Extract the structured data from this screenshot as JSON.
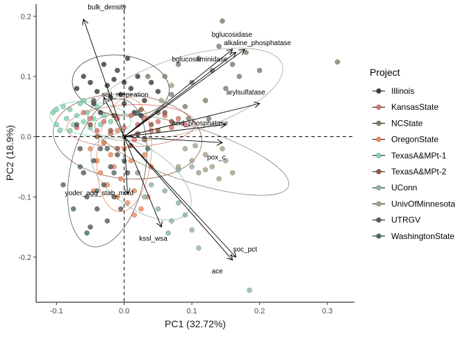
{
  "chart_data": {
    "type": "scatter",
    "title": "",
    "xlabel": "PC1 (32.72%)",
    "ylabel": "PC2 (18.9%)",
    "xlim": [
      -0.13,
      0.34
    ],
    "ylim": [
      -0.275,
      0.22
    ],
    "xticks": [
      -0.1,
      0.0,
      0.1,
      0.2,
      0.3
    ],
    "xtick_labels": [
      "-0.1",
      "0.0",
      "0.1",
      "0.2",
      "0.3"
    ],
    "yticks": [
      -0.2,
      -0.1,
      0.0,
      0.1,
      0.2
    ],
    "ytick_labels": [
      "-0.2",
      "-0.1",
      "0.0",
      "0.1",
      "0.2"
    ],
    "grid": false,
    "reference_lines": {
      "x": 0,
      "y": 0,
      "style": "dashed"
    },
    "legend": {
      "title": "Project",
      "placement": "right",
      "entries": [
        {
          "name": "Illinois",
          "color": "#3d3d3d"
        },
        {
          "name": "KansasState",
          "color": "#d9736b"
        },
        {
          "name": "NCState",
          "color": "#80806a"
        },
        {
          "name": "OregonState",
          "color": "#f08a5a"
        },
        {
          "name": "TexasA&MPt-1",
          "color": "#7ed3b2"
        },
        {
          "name": "TexasA&MPt-2",
          "color": "#8b5a40"
        },
        {
          "name": "UConn",
          "color": "#8fb3ad"
        },
        {
          "name": "UnivOfMinnesota",
          "color": "#a3a38a"
        },
        {
          "name": "UTRGV",
          "color": "#5a5a5a"
        },
        {
          "name": "WashingtonState",
          "color": "#4a6e66"
        }
      ]
    },
    "loadings": [
      {
        "name": "bulk_density",
        "x": -0.06,
        "y": 0.195
      },
      {
        "name": "bglucosidase",
        "x": 0.16,
        "y": 0.145
      },
      {
        "name": "alkaline_phosphatase",
        "x": 0.178,
        "y": 0.145
      },
      {
        "name": "bglucosaminidase",
        "x": 0.165,
        "y": 0.14
      },
      {
        "name": "arylsulfatase",
        "x": 0.2,
        "y": 0.055
      },
      {
        "name": "soil_respiration",
        "x": -0.03,
        "y": 0.065
      },
      {
        "name": "acid_phosphatase",
        "x": 0.15,
        "y": 0.02
      },
      {
        "name": "pox_c",
        "x": 0.145,
        "y": -0.01
      },
      {
        "name": "yoder_agg_stab_mwd",
        "x": 0.005,
        "y": -0.095
      },
      {
        "name": "kssl_wsa",
        "x": 0.055,
        "y": -0.15
      },
      {
        "name": "soc_pct",
        "x": 0.165,
        "y": -0.2
      },
      {
        "name": "ace",
        "x": 0.16,
        "y": -0.205
      }
    ],
    "ellipses": [
      {
        "group": "UnivOfMinnesota",
        "cx": 0.09,
        "cy": 0.07,
        "rx": 0.15,
        "ry": 0.062,
        "angle": 17
      },
      {
        "group": "Illinois",
        "cx": -0.005,
        "cy": 0.085,
        "rx": 0.072,
        "ry": 0.05,
        "angle": -8
      },
      {
        "group": "KansasState",
        "cx": 0.01,
        "cy": 0.018,
        "rx": 0.095,
        "ry": 0.035,
        "angle": 2
      },
      {
        "group": "TexasA&MPt-2",
        "cx": 0.005,
        "cy": 0.0,
        "rx": 0.11,
        "ry": 0.07,
        "angle": -5
      },
      {
        "group": "NCState",
        "cx": 0.1,
        "cy": -0.03,
        "rx": 0.15,
        "ry": 0.045,
        "angle": -18
      },
      {
        "group": "TexasA&MPt-1",
        "cx": -0.05,
        "cy": 0.03,
        "rx": 0.06,
        "ry": 0.028,
        "angle": -5
      },
      {
        "group": "OregonState",
        "cx": 0.0,
        "cy": -0.03,
        "rx": 0.04,
        "ry": 0.095,
        "angle": -5
      },
      {
        "group": "UTRGV",
        "cx": -0.025,
        "cy": -0.06,
        "rx": 0.055,
        "ry": 0.125,
        "angle": -12
      },
      {
        "group": "UConn",
        "cx": 0.025,
        "cy": -0.07,
        "rx": 0.085,
        "ry": 0.05,
        "angle": -35
      }
    ],
    "points": [
      {
        "group": "TexasA&MPt-1",
        "x": -0.105,
        "y": 0.04
      },
      {
        "group": "TexasA&MPt-1",
        "x": -0.1,
        "y": 0.02
      },
      {
        "group": "TexasA&MPt-1",
        "x": -0.095,
        "y": 0.01
      },
      {
        "group": "TexasA&MPt-1",
        "x": -0.09,
        "y": 0.05
      },
      {
        "group": "TexasA&MPt-1",
        "x": -0.085,
        "y": 0.03
      },
      {
        "group": "TexasA&MPt-1",
        "x": -0.08,
        "y": 0.045
      },
      {
        "group": "TexasA&MPt-1",
        "x": -0.075,
        "y": 0.02
      },
      {
        "group": "TexasA&MPt-1",
        "x": -0.07,
        "y": 0.035
      },
      {
        "group": "TexasA&MPt-1",
        "x": -0.065,
        "y": 0.055
      },
      {
        "group": "TexasA&MPt-1",
        "x": -0.06,
        "y": 0.025
      },
      {
        "group": "TexasA&MPt-1",
        "x": -0.055,
        "y": 0.04
      },
      {
        "group": "TexasA&MPt-1",
        "x": -0.05,
        "y": 0.015
      },
      {
        "group": "TexasA&MPt-1",
        "x": -0.045,
        "y": 0.03
      },
      {
        "group": "TexasA&MPt-1",
        "x": -0.04,
        "y": 0.05
      },
      {
        "group": "TexasA&MPt-1",
        "x": -0.035,
        "y": 0.02
      },
      {
        "group": "TexasA&MPt-1",
        "x": -0.03,
        "y": 0.035
      },
      {
        "group": "TexasA&MPt-1",
        "x": -0.1,
        "y": 0.045
      },
      {
        "group": "TexasA&MPt-1",
        "x": -0.08,
        "y": 0.01
      },
      {
        "group": "TexasA&MPt-1",
        "x": -0.06,
        "y": 0.06
      },
      {
        "group": "TexasA&MPt-1",
        "x": -0.02,
        "y": 0.025
      },
      {
        "group": "Illinois",
        "x": -0.07,
        "y": 0.08
      },
      {
        "group": "Illinois",
        "x": -0.06,
        "y": 0.1
      },
      {
        "group": "Illinois",
        "x": -0.05,
        "y": 0.09
      },
      {
        "group": "Illinois",
        "x": -0.04,
        "y": 0.075
      },
      {
        "group": "Illinois",
        "x": -0.03,
        "y": 0.12
      },
      {
        "group": "Illinois",
        "x": -0.025,
        "y": 0.085
      },
      {
        "group": "Illinois",
        "x": -0.02,
        "y": 0.065
      },
      {
        "group": "Illinois",
        "x": -0.015,
        "y": 0.095
      },
      {
        "group": "Illinois",
        "x": -0.01,
        "y": 0.11
      },
      {
        "group": "Illinois",
        "x": -0.005,
        "y": 0.07
      },
      {
        "group": "Illinois",
        "x": 0.0,
        "y": 0.09
      },
      {
        "group": "Illinois",
        "x": 0.005,
        "y": 0.13
      },
      {
        "group": "Illinois",
        "x": 0.01,
        "y": 0.08
      },
      {
        "group": "Illinois",
        "x": 0.02,
        "y": 0.1
      },
      {
        "group": "Illinois",
        "x": 0.03,
        "y": 0.06
      },
      {
        "group": "Illinois",
        "x": 0.04,
        "y": 0.09
      },
      {
        "group": "Illinois",
        "x": 0.05,
        "y": 0.075
      },
      {
        "group": "Illinois",
        "x": -0.045,
        "y": 0.055
      },
      {
        "group": "Illinois",
        "x": 0.0,
        "y": 0.055
      },
      {
        "group": "Illinois",
        "x": 0.015,
        "y": 0.04
      },
      {
        "group": "Illinois",
        "x": -0.035,
        "y": 0.04
      },
      {
        "group": "Illinois",
        "x": 0.025,
        "y": 0.035
      },
      {
        "group": "KansasState",
        "x": -0.07,
        "y": 0.015
      },
      {
        "group": "KansasState",
        "x": -0.05,
        "y": 0.03
      },
      {
        "group": "KansasState",
        "x": -0.04,
        "y": 0.01
      },
      {
        "group": "KansasState",
        "x": -0.03,
        "y": 0.025
      },
      {
        "group": "KansasState",
        "x": -0.02,
        "y": 0.005
      },
      {
        "group": "KansasState",
        "x": -0.01,
        "y": 0.03
      },
      {
        "group": "KansasState",
        "x": 0.0,
        "y": 0.015
      },
      {
        "group": "KansasState",
        "x": 0.01,
        "y": 0.035
      },
      {
        "group": "KansasState",
        "x": 0.02,
        "y": 0.02
      },
      {
        "group": "KansasState",
        "x": 0.03,
        "y": 0.03
      },
      {
        "group": "KansasState",
        "x": 0.04,
        "y": 0.01
      },
      {
        "group": "KansasState",
        "x": 0.05,
        "y": 0.025
      },
      {
        "group": "KansasState",
        "x": 0.06,
        "y": 0.035
      },
      {
        "group": "KansasState",
        "x": 0.07,
        "y": 0.015
      },
      {
        "group": "KansasState",
        "x": 0.08,
        "y": 0.03
      },
      {
        "group": "KansasState",
        "x": 0.09,
        "y": 0.02
      },
      {
        "group": "KansasState",
        "x": -0.06,
        "y": 0.04
      },
      {
        "group": "KansasState",
        "x": 0.015,
        "y": -0.005
      },
      {
        "group": "TexasA&MPt-2",
        "x": -0.04,
        "y": 0.0
      },
      {
        "group": "TexasA&MPt-2",
        "x": -0.03,
        "y": -0.01
      },
      {
        "group": "TexasA&MPt-2",
        "x": -0.02,
        "y": 0.01
      },
      {
        "group": "TexasA&MPt-2",
        "x": -0.01,
        "y": -0.02
      },
      {
        "group": "TexasA&MPt-2",
        "x": 0.0,
        "y": 0.0
      },
      {
        "group": "TexasA&MPt-2",
        "x": 0.01,
        "y": -0.015
      },
      {
        "group": "TexasA&MPt-2",
        "x": 0.02,
        "y": 0.005
      },
      {
        "group": "TexasA&MPt-2",
        "x": 0.03,
        "y": -0.005
      },
      {
        "group": "TexasA&MPt-2",
        "x": 0.04,
        "y": 0.02
      },
      {
        "group": "TexasA&MPt-2",
        "x": 0.05,
        "y": 0.01
      },
      {
        "group": "TexasA&MPt-2",
        "x": 0.06,
        "y": 0.04
      },
      {
        "group": "TexasA&MPt-2",
        "x": 0.07,
        "y": 0.025
      },
      {
        "group": "TexasA&MPt-2",
        "x": -0.05,
        "y": 0.02
      },
      {
        "group": "TexasA&MPt-2",
        "x": -0.015,
        "y": 0.035
      },
      {
        "group": "TexasA&MPt-2",
        "x": 0.025,
        "y": 0.045
      },
      {
        "group": "OregonState",
        "x": -0.05,
        "y": -0.02
      },
      {
        "group": "OregonState",
        "x": -0.04,
        "y": -0.04
      },
      {
        "group": "OregonState",
        "x": -0.035,
        "y": -0.06
      },
      {
        "group": "OregonState",
        "x": -0.03,
        "y": -0.01
      },
      {
        "group": "OregonState",
        "x": -0.025,
        "y": -0.08
      },
      {
        "group": "OregonState",
        "x": -0.02,
        "y": -0.03
      },
      {
        "group": "OregonState",
        "x": -0.015,
        "y": -0.05
      },
      {
        "group": "OregonState",
        "x": -0.01,
        "y": -0.1
      },
      {
        "group": "OregonState",
        "x": -0.005,
        "y": -0.07
      },
      {
        "group": "OregonState",
        "x": 0.0,
        "y": -0.02
      },
      {
        "group": "OregonState",
        "x": 0.005,
        "y": -0.11
      },
      {
        "group": "OregonState",
        "x": 0.01,
        "y": -0.04
      },
      {
        "group": "OregonState",
        "x": 0.015,
        "y": -0.09
      },
      {
        "group": "OregonState",
        "x": 0.02,
        "y": -0.06
      },
      {
        "group": "OregonState",
        "x": 0.025,
        "y": -0.12
      },
      {
        "group": "OregonState",
        "x": 0.03,
        "y": -0.03
      },
      {
        "group": "OregonState",
        "x": 0.035,
        "y": -0.1
      },
      {
        "group": "OregonState",
        "x": 0.04,
        "y": -0.05
      },
      {
        "group": "OregonState",
        "x": -0.045,
        "y": -0.09
      },
      {
        "group": "OregonState",
        "x": 0.015,
        "y": -0.13
      },
      {
        "group": "OregonState",
        "x": -0.01,
        "y": 0.01
      },
      {
        "group": "UTRGV",
        "x": -0.06,
        "y": -0.06
      },
      {
        "group": "UTRGV",
        "x": -0.055,
        "y": -0.1
      },
      {
        "group": "UTRGV",
        "x": -0.05,
        "y": -0.15
      },
      {
        "group": "UTRGV",
        "x": -0.045,
        "y": -0.04
      },
      {
        "group": "UTRGV",
        "x": -0.04,
        "y": -0.12
      },
      {
        "group": "UTRGV",
        "x": -0.035,
        "y": -0.02
      },
      {
        "group": "UTRGV",
        "x": -0.03,
        "y": -0.08
      },
      {
        "group": "UTRGV",
        "x": -0.025,
        "y": -0.14
      },
      {
        "group": "UTRGV",
        "x": -0.02,
        "y": -0.05
      },
      {
        "group": "UTRGV",
        "x": -0.015,
        "y": -0.1
      },
      {
        "group": "UTRGV",
        "x": -0.01,
        "y": -0.03
      },
      {
        "group": "UTRGV",
        "x": -0.005,
        "y": -0.12
      },
      {
        "group": "UTRGV",
        "x": 0.005,
        "y": -0.06
      },
      {
        "group": "UTRGV",
        "x": -0.065,
        "y": -0.02
      },
      {
        "group": "UTRGV",
        "x": -0.07,
        "y": 0.02
      },
      {
        "group": "UTRGV",
        "x": -0.045,
        "y": 0.06
      },
      {
        "group": "WashingtonState",
        "x": -0.09,
        "y": -0.08
      },
      {
        "group": "WashingtonState",
        "x": -0.075,
        "y": -0.12
      },
      {
        "group": "WashingtonState",
        "x": -0.065,
        "y": -0.05
      },
      {
        "group": "WashingtonState",
        "x": -0.055,
        "y": -0.16
      },
      {
        "group": "WashingtonState",
        "x": -0.04,
        "y": -0.09
      },
      {
        "group": "WashingtonState",
        "x": -0.025,
        "y": -0.02
      },
      {
        "group": "WashingtonState",
        "x": -0.015,
        "y": -0.06
      },
      {
        "group": "WashingtonState",
        "x": 0.0,
        "y": -0.04
      },
      {
        "group": "WashingtonState",
        "x": 0.02,
        "y": 0.04
      },
      {
        "group": "WashingtonState",
        "x": 0.035,
        "y": -0.02
      },
      {
        "group": "UConn",
        "x": 0.02,
        "y": -0.06
      },
      {
        "group": "UConn",
        "x": 0.03,
        "y": -0.1
      },
      {
        "group": "UConn",
        "x": 0.04,
        "y": -0.08
      },
      {
        "group": "UConn",
        "x": 0.05,
        "y": -0.12
      },
      {
        "group": "UConn",
        "x": 0.06,
        "y": -0.09
      },
      {
        "group": "UConn",
        "x": 0.07,
        "y": -0.14
      },
      {
        "group": "UConn",
        "x": 0.08,
        "y": -0.11
      },
      {
        "group": "UConn",
        "x": 0.09,
        "y": -0.13
      },
      {
        "group": "UConn",
        "x": 0.1,
        "y": -0.155
      },
      {
        "group": "UConn",
        "x": 0.065,
        "y": -0.16
      },
      {
        "group": "UConn",
        "x": 0.08,
        "y": -0.055
      },
      {
        "group": "UConn",
        "x": 0.1,
        "y": -0.05
      },
      {
        "group": "UConn",
        "x": 0.11,
        "y": -0.185
      },
      {
        "group": "UConn",
        "x": 0.185,
        "y": -0.255
      },
      {
        "group": "NCState",
        "x": 0.05,
        "y": 0.04
      },
      {
        "group": "NCState",
        "x": 0.06,
        "y": 0.1
      },
      {
        "group": "NCState",
        "x": 0.07,
        "y": 0.07
      },
      {
        "group": "NCState",
        "x": 0.08,
        "y": 0.12
      },
      {
        "group": "NCState",
        "x": 0.09,
        "y": 0.05
      },
      {
        "group": "NCState",
        "x": 0.1,
        "y": 0.09
      },
      {
        "group": "NCState",
        "x": 0.11,
        "y": 0.13
      },
      {
        "group": "NCState",
        "x": 0.12,
        "y": 0.06
      },
      {
        "group": "NCState",
        "x": 0.13,
        "y": 0.11
      },
      {
        "group": "NCState",
        "x": 0.14,
        "y": 0.15
      },
      {
        "group": "NCState",
        "x": 0.15,
        "y": 0.08
      },
      {
        "group": "NCState",
        "x": 0.16,
        "y": 0.12
      },
      {
        "group": "NCState",
        "x": 0.17,
        "y": 0.1
      },
      {
        "group": "NCState",
        "x": 0.18,
        "y": 0.14
      },
      {
        "group": "NCState",
        "x": 0.2,
        "y": 0.11
      },
      {
        "group": "NCState",
        "x": 0.145,
        "y": 0.192
      },
      {
        "group": "NCState",
        "x": 0.315,
        "y": 0.124
      },
      {
        "group": "NCState",
        "x": 0.035,
        "y": 0.1
      },
      {
        "group": "NCState",
        "x": 0.095,
        "y": 0.03
      },
      {
        "group": "NCState",
        "x": 0.125,
        "y": 0.03
      },
      {
        "group": "UnivOfMinnesota",
        "x": 0.08,
        "y": -0.05
      },
      {
        "group": "UnivOfMinnesota",
        "x": 0.09,
        "y": -0.02
      },
      {
        "group": "UnivOfMinnesota",
        "x": 0.1,
        "y": -0.04
      },
      {
        "group": "UnivOfMinnesota",
        "x": 0.11,
        "y": -0.06
      },
      {
        "group": "UnivOfMinnesota",
        "x": 0.12,
        "y": -0.03
      },
      {
        "group": "UnivOfMinnesota",
        "x": 0.13,
        "y": -0.05
      },
      {
        "group": "UnivOfMinnesota",
        "x": 0.14,
        "y": -0.07
      },
      {
        "group": "UnivOfMinnesota",
        "x": 0.15,
        "y": -0.04
      },
      {
        "group": "UnivOfMinnesota",
        "x": 0.16,
        "y": -0.06
      },
      {
        "group": "UnivOfMinnesota",
        "x": 0.12,
        "y": -0.055
      },
      {
        "group": "UnivOfMinnesota",
        "x": 0.105,
        "y": -0.015
      },
      {
        "group": "UnivOfMinnesota",
        "x": 0.145,
        "y": -0.02
      },
      {
        "group": "UnivOfMinnesota",
        "x": 0.055,
        "y": 0.06
      },
      {
        "group": "UnivOfMinnesota",
        "x": 0.07,
        "y": 0.085
      }
    ]
  }
}
